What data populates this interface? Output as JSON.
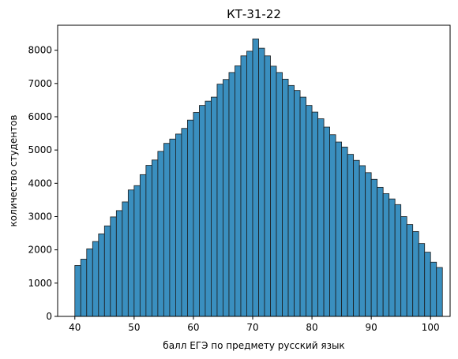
{
  "chart_data": {
    "type": "bar",
    "title": "КТ-31-22",
    "xlabel": "балл ЕГЭ по предмету русский язык",
    "ylabel": "количество студентов",
    "xlim": [
      37.1,
      103.3
    ],
    "ylim": [
      0,
      8750
    ],
    "xticks": [
      40,
      50,
      60,
      70,
      80,
      90,
      100
    ],
    "yticks": [
      0,
      1000,
      2000,
      3000,
      4000,
      5000,
      6000,
      7000,
      8000
    ],
    "bin_start": 40,
    "bin_width": 1,
    "values": [
      1530,
      1720,
      2030,
      2250,
      2480,
      2720,
      2990,
      3180,
      3440,
      3800,
      3930,
      4260,
      4540,
      4700,
      4960,
      5200,
      5330,
      5480,
      5650,
      5900,
      6130,
      6340,
      6470,
      6590,
      6980,
      7120,
      7330,
      7530,
      7830,
      7970,
      8340,
      8060,
      7830,
      7520,
      7330,
      7130,
      6940,
      6790,
      6590,
      6340,
      6140,
      5940,
      5690,
      5460,
      5240,
      5090,
      4870,
      4690,
      4530,
      4320,
      4120,
      3880,
      3690,
      3530,
      3360,
      3000,
      2760,
      2550,
      2190,
      1930,
      1630,
      1470
    ],
    "bar_color": "#3a8fbf",
    "edge_color": "#1b1b1b",
    "grid": false
  }
}
